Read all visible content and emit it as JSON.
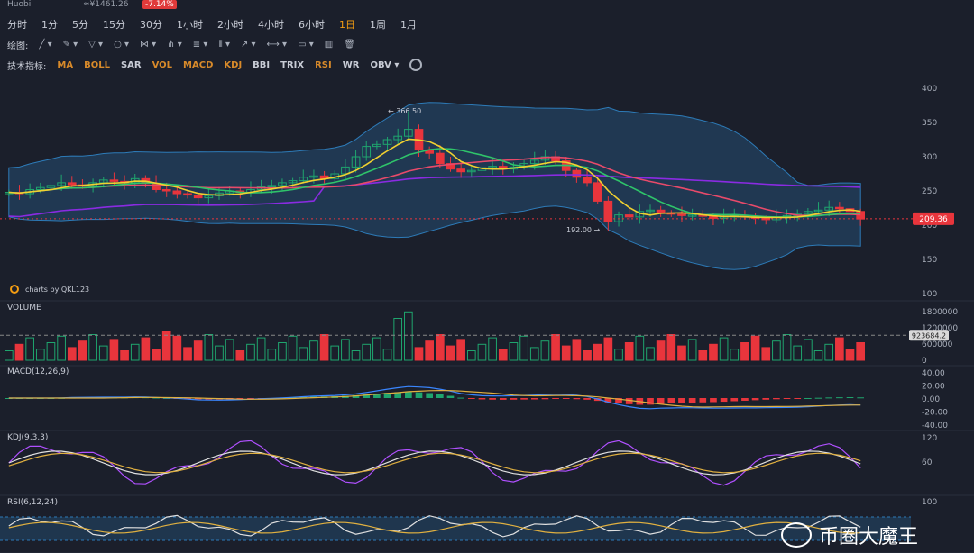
{
  "header": {
    "exchange": "Huobi",
    "price": "≈¥1461.26",
    "change": "-7.14%"
  },
  "timeframes": [
    "分时",
    "1分",
    "5分",
    "15分",
    "30分",
    "1小时",
    "2小时",
    "4小时",
    "6小时",
    "1日",
    "1周",
    "1月"
  ],
  "active_timeframe": "1日",
  "drawing": {
    "label": "绘图:"
  },
  "indicators": {
    "label": "技术指标:",
    "items": [
      "MA",
      "BOLL",
      "SAR",
      "VOL",
      "MACD",
      "KDJ",
      "BBI",
      "TRIX",
      "RSI",
      "WR",
      "OBV ▾"
    ],
    "white": [
      "SAR",
      "BBI",
      "TRIX",
      "WR",
      "OBV ▾"
    ]
  },
  "watermark": "charts by QKL123",
  "wechat": "币圈大魔王",
  "colors": {
    "up": "#1fa56e",
    "down": "#e8353c",
    "ma5": "#f0d030",
    "ma10": "#2fc46a",
    "ma20": "#e84a6a",
    "ma60": "#8a2be2",
    "boll": "#2d7bb8"
  },
  "chart_data": [
    {
      "type": "candlestick",
      "panel": "price",
      "ylim": [
        100,
        400
      ],
      "yticks": [
        "400",
        "350",
        "300",
        "250",
        "200",
        "150",
        "100"
      ],
      "last_price": "209.36",
      "annotations": {
        "high": "366.50",
        "low": "192.00"
      },
      "closes": [
        248,
        246,
        252,
        255,
        258,
        262,
        259,
        257,
        262,
        266,
        264,
        262,
        268,
        261,
        252,
        250,
        246,
        244,
        240,
        243,
        247,
        250,
        248,
        252,
        256,
        258,
        262,
        265,
        270,
        272,
        268,
        275,
        285,
        300,
        315,
        318,
        325,
        330,
        340,
        310,
        305,
        290,
        282,
        278,
        280,
        284,
        286,
        282,
        285,
        290,
        295,
        300,
        294,
        280,
        270,
        262,
        235,
        205,
        215,
        212,
        220,
        222,
        218,
        216,
        214,
        215,
        213,
        210,
        212,
        214,
        212,
        210,
        208,
        212,
        214,
        216,
        220,
        222,
        226,
        224,
        220,
        209
      ]
    },
    {
      "type": "bar",
      "panel": "VOLUME",
      "ylim": [
        0,
        1800000
      ],
      "yticks": [
        "1800000",
        "1200000",
        "600000",
        "0"
      ],
      "last": "923684.2"
    },
    {
      "type": "line",
      "panel": "MACD(12,26,9)",
      "ylim": [
        -40,
        40
      ],
      "yticks": [
        "40.00",
        "20.00",
        "0.00",
        "-20.00",
        "-40.00"
      ]
    },
    {
      "type": "line",
      "panel": "KDJ(9,3,3)",
      "ylim": [
        0,
        120
      ],
      "yticks": [
        "120",
        "60"
      ]
    },
    {
      "type": "line",
      "panel": "RSI(6,12,24)",
      "ylim": [
        0,
        100
      ],
      "yticks": [
        "100"
      ]
    }
  ]
}
